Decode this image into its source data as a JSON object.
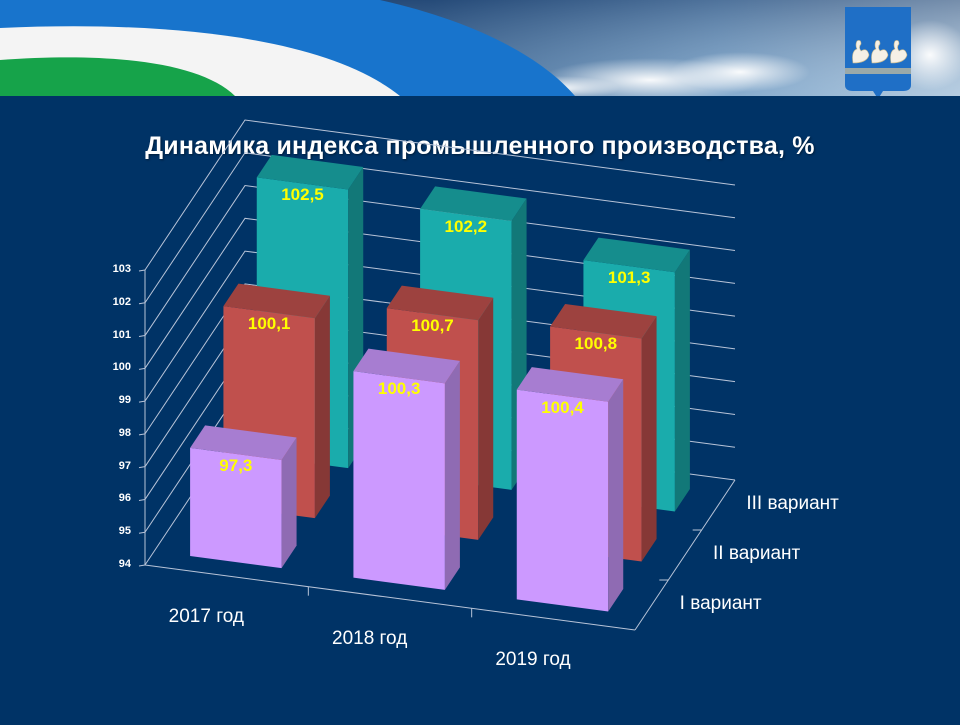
{
  "slide": {
    "title": "Динамика индекса промышленного  производства, %",
    "background_color": "#003366",
    "banner": {
      "emblem": "city-coat-of-arms-three-swans"
    }
  },
  "chart_data": {
    "type": "bar",
    "subtype": "3d-clustered-column",
    "title": "Динамика индекса промышленного  производства, %",
    "categories": [
      "2017 год",
      "2018 год",
      "2019 год"
    ],
    "series": [
      {
        "name": "I вариант",
        "values": [
          97.3,
          100.3,
          100.4
        ],
        "labels": [
          "97,3",
          "100,3",
          "100,4"
        ],
        "color": "#cc99ff"
      },
      {
        "name": "II вариант",
        "values": [
          100.1,
          100.7,
          100.8
        ],
        "labels": [
          "100,1",
          "100,7",
          "100,8"
        ],
        "color": "#c0504d"
      },
      {
        "name": "III вариант",
        "values": [
          102.5,
          102.2,
          101.3
        ],
        "labels": [
          "102,5",
          "102,2",
          "101,3"
        ],
        "color": "#1aacac"
      }
    ],
    "yticks": [
      "94",
      "95",
      "96",
      "97",
      "98",
      "99",
      "100",
      "101",
      "102",
      "103"
    ],
    "ylim": [
      94,
      103
    ],
    "xlabel": "",
    "ylabel": "",
    "grid": true,
    "data_label_color": "#ffff00"
  }
}
